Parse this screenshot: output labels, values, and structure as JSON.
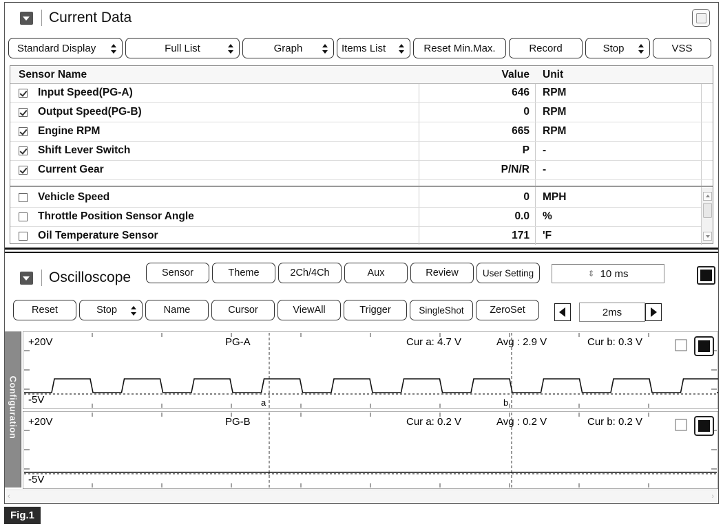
{
  "current_data": {
    "title": "Current Data",
    "toolbar": [
      {
        "label": "Standard Display",
        "dropdown": true
      },
      {
        "label": "Full List",
        "dropdown": true
      },
      {
        "label": "Graph",
        "dropdown": true
      },
      {
        "label": "Items List",
        "dropdown": true
      },
      {
        "label": "Reset Min.Max.",
        "dropdown": false
      },
      {
        "label": "Record",
        "dropdown": false
      },
      {
        "label": "Stop",
        "dropdown": true
      },
      {
        "label": "VSS",
        "dropdown": false
      }
    ],
    "table": {
      "headers": {
        "name": "Sensor Name",
        "value": "Value",
        "unit": "Unit"
      },
      "rows": [
        {
          "name": "Input Speed(PG-A)",
          "value": "646",
          "unit": "RPM",
          "checked": true
        },
        {
          "name": "Output Speed(PG-B)",
          "value": "0",
          "unit": "RPM",
          "checked": true
        },
        {
          "name": "Engine RPM",
          "value": "665",
          "unit": "RPM",
          "checked": true
        },
        {
          "name": "Shift Lever Switch",
          "value": "P",
          "unit": "-",
          "checked": true
        },
        {
          "name": "Current Gear",
          "value": "P/N/R",
          "unit": "-",
          "checked": true
        },
        {
          "name": "Vehicle Speed",
          "value": "0",
          "unit": "MPH",
          "checked": false
        },
        {
          "name": "Throttle Position Sensor Angle",
          "value": "0.0",
          "unit": "%",
          "checked": false
        },
        {
          "name": "Oil Temperature Sensor",
          "value": "171",
          "unit": "'F",
          "checked": false
        }
      ]
    }
  },
  "oscilloscope": {
    "title": "Oscilloscope",
    "toolbar1": [
      "Sensor",
      "Theme",
      "2Ch/4Ch",
      "Aux",
      "Review",
      "User Setting"
    ],
    "sample_time": "10 ms",
    "toolbar2": [
      {
        "label": "Reset",
        "dropdown": false
      },
      {
        "label": "Stop",
        "dropdown": true
      },
      {
        "label": "Name",
        "dropdown": false
      },
      {
        "label": "Cursor",
        "dropdown": false
      },
      {
        "label": "ViewAll",
        "dropdown": false
      },
      {
        "label": "Trigger",
        "dropdown": false
      },
      {
        "label": "SingleShot",
        "dropdown": false
      },
      {
        "label": "ZeroSet",
        "dropdown": false
      }
    ],
    "time_div": "2ms",
    "config_tab": "Configuration",
    "channels": [
      {
        "name": "PG-A",
        "top_label": "+20V",
        "bottom_label": "-5V",
        "cur_a": "Cur a: 4.7 V",
        "avg": "Avg  : 2.9 V",
        "cur_b": "Cur b: 0.3 V",
        "cursor_a": "a",
        "cursor_b": "b"
      },
      {
        "name": "PG-B",
        "top_label": "+20V",
        "bottom_label": "-5V",
        "cur_a": "Cur a: 0.2 V",
        "avg": "Avg  : 0.2 V",
        "cur_b": "Cur b: 0.2 V"
      }
    ]
  },
  "figure_label": "Fig.1"
}
